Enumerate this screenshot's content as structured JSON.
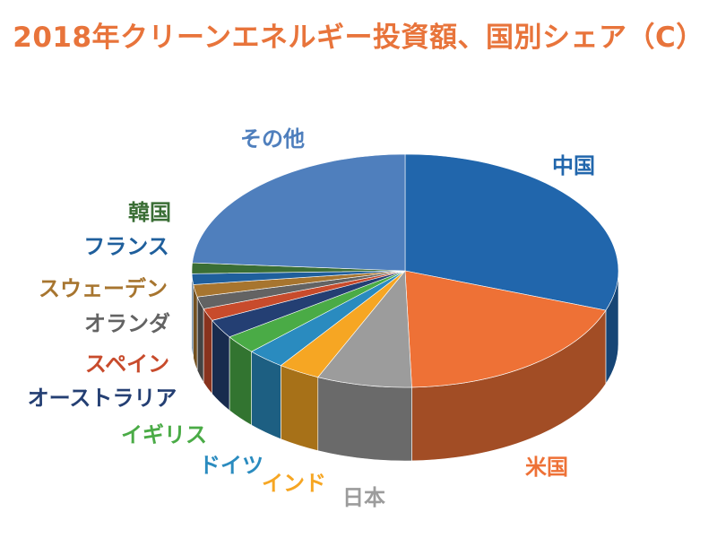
{
  "chart_data": {
    "type": "pie",
    "title": "2018年クリーンエネルギー投資額、国別シェア（C）",
    "title_color": "#e8743b",
    "series": [
      {
        "name": "中国",
        "value": 30.5,
        "color": "#2166ac"
      },
      {
        "name": "米国",
        "value": 19.0,
        "color": "#ee7136"
      },
      {
        "name": "日本",
        "value": 7.2,
        "color": "#9c9c9c"
      },
      {
        "name": "インド",
        "value": 3.2,
        "color": "#f6a623"
      },
      {
        "name": "ドイツ",
        "value": 2.9,
        "color": "#2a8bbf"
      },
      {
        "name": "イギリス",
        "value": 2.6,
        "color": "#4aab46"
      },
      {
        "name": "オーストラリア",
        "value": 2.6,
        "color": "#243f73"
      },
      {
        "name": "スペイン",
        "value": 1.7,
        "color": "#c84b2c"
      },
      {
        "name": "オランダ",
        "value": 1.7,
        "color": "#636363"
      },
      {
        "name": "スウェーデン",
        "value": 1.7,
        "color": "#a7752f"
      },
      {
        "name": "フランス",
        "value": 1.5,
        "color": "#1f5f9c"
      },
      {
        "name": "韓国",
        "value": 1.5,
        "color": "#3a6e35"
      },
      {
        "name": "その他",
        "value": 23.9,
        "color": "#4f7fbd"
      }
    ]
  }
}
